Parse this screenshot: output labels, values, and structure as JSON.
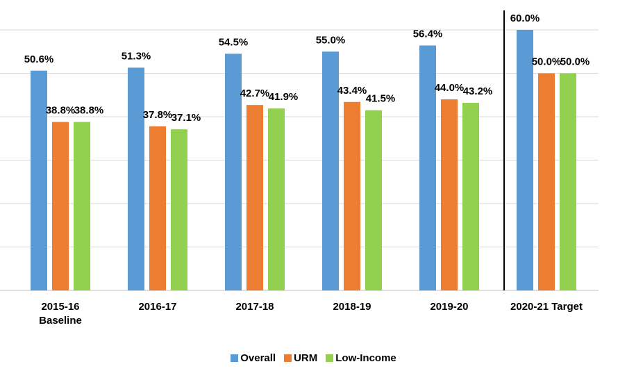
{
  "chart_data": {
    "type": "bar",
    "categories": [
      "2015-16\nBaseline",
      "2016-17",
      "2017-18",
      "2018-19",
      "2019-20",
      "2020-21 Target"
    ],
    "series": [
      {
        "name": "Overall",
        "color": "#5b9bd5",
        "values": [
          50.6,
          51.3,
          54.5,
          55.0,
          56.4,
          60.0
        ],
        "value_labels": [
          "50.6%",
          "51.3%",
          "54.5%",
          "55.0%",
          "56.4%",
          "60.0%"
        ]
      },
      {
        "name": "URM",
        "color": "#ed7d31",
        "values": [
          38.8,
          37.8,
          42.7,
          43.4,
          44.0,
          50.0
        ],
        "value_labels": [
          "38.8%",
          "37.8%",
          "42.7%",
          "43.4%",
          "44.0%",
          "50.0%"
        ]
      },
      {
        "name": "Low-Income",
        "color": "#92d050",
        "values": [
          38.8,
          37.1,
          41.9,
          41.5,
          43.2,
          50.0
        ],
        "value_labels": [
          "38.8%",
          "37.1%",
          "41.9%",
          "41.5%",
          "43.2%",
          "50.0%"
        ]
      }
    ],
    "ylim": [
      0,
      60
    ],
    "yticks": [
      0,
      10,
      20,
      30,
      40,
      50,
      60
    ],
    "grid": true
  }
}
